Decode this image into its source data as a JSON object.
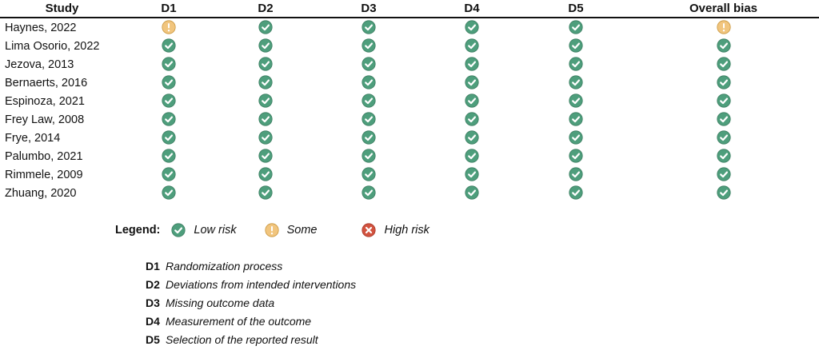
{
  "table": {
    "headers": [
      "Study",
      "D1",
      "D2",
      "D3",
      "D4",
      "D5",
      "Overall bias"
    ],
    "rows": [
      {
        "study": "Haynes, 2022",
        "ratings": [
          "some",
          "low",
          "low",
          "low",
          "low",
          "some"
        ]
      },
      {
        "study": "Lima Osorio, 2022",
        "ratings": [
          "low",
          "low",
          "low",
          "low",
          "low",
          "low"
        ]
      },
      {
        "study": "Jezova, 2013",
        "ratings": [
          "low",
          "low",
          "low",
          "low",
          "low",
          "low"
        ]
      },
      {
        "study": "Bernaerts, 2016",
        "ratings": [
          "low",
          "low",
          "low",
          "low",
          "low",
          "low"
        ]
      },
      {
        "study": "Espinoza, 2021",
        "ratings": [
          "low",
          "low",
          "low",
          "low",
          "low",
          "low"
        ]
      },
      {
        "study": "Frey Law, 2008",
        "ratings": [
          "low",
          "low",
          "low",
          "low",
          "low",
          "low"
        ]
      },
      {
        "study": "Frye, 2014",
        "ratings": [
          "low",
          "low",
          "low",
          "low",
          "low",
          "low"
        ]
      },
      {
        "study": "Palumbo, 2021",
        "ratings": [
          "low",
          "low",
          "low",
          "low",
          "low",
          "low"
        ]
      },
      {
        "study": "Rimmele, 2009",
        "ratings": [
          "low",
          "low",
          "low",
          "low",
          "low",
          "low"
        ]
      },
      {
        "study": "Zhuang, 2020",
        "ratings": [
          "low",
          "low",
          "low",
          "low",
          "low",
          "low"
        ]
      }
    ]
  },
  "legend": {
    "title": "Legend:",
    "items": [
      {
        "key": "low",
        "label": "Low risk"
      },
      {
        "key": "some",
        "label": "Some"
      },
      {
        "key": "high",
        "label": "High risk"
      }
    ]
  },
  "domains": [
    {
      "code": "D1",
      "description": "Randomization process"
    },
    {
      "code": "D2",
      "description": "Deviations from intended interventions"
    },
    {
      "code": "D3",
      "description": "Missing outcome data"
    },
    {
      "code": "D4",
      "description": "Measurement of the outcome"
    },
    {
      "code": "D5",
      "description": "Selection of the reported result"
    }
  ],
  "colors": {
    "low": "#4e9e7c",
    "some": "#f1c57e",
    "high": "#d2533f"
  },
  "icons": {
    "low": "check-circle-icon",
    "some": "exclamation-circle-icon",
    "high": "cross-circle-icon"
  }
}
